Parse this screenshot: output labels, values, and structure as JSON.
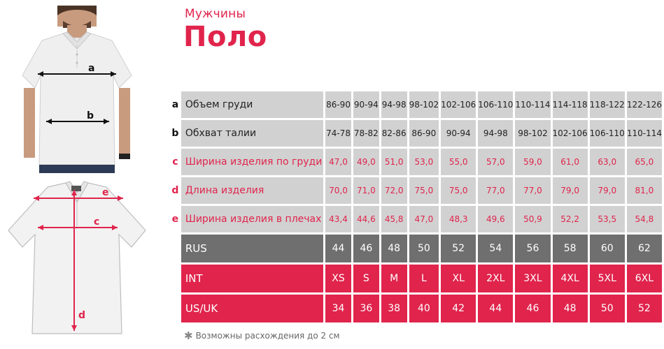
{
  "heading": {
    "subtitle": "Мужчины",
    "title": "Поло"
  },
  "figure_labels": {
    "model": [
      "a",
      "b"
    ],
    "flat": [
      "e",
      "c",
      "d"
    ]
  },
  "rows": [
    {
      "key": "a",
      "label": "Объем груди",
      "values": [
        "86-90",
        "90-94",
        "94-98",
        "98-102",
        "102-106",
        "106-110",
        "110-114",
        "114-118",
        "118-122",
        "122-126"
      ]
    },
    {
      "key": "b",
      "label": "Обхват талии",
      "values": [
        "74-78",
        "78-82",
        "82-86",
        "86-90",
        "90-94",
        "94-98",
        "98-102",
        "102-106",
        "106-110",
        "110-114"
      ]
    },
    {
      "key": "c",
      "label": "Ширина изделия по груди",
      "values": [
        "47,0",
        "49,0",
        "51,0",
        "53,0",
        "55,0",
        "57,0",
        "59,0",
        "61,0",
        "63,0",
        "65,0"
      ]
    },
    {
      "key": "d",
      "label": "Длина изделия",
      "values": [
        "70,0",
        "71,0",
        "72,0",
        "75,0",
        "75,0",
        "77,0",
        "77,0",
        "79,0",
        "79,0",
        "81,0"
      ]
    },
    {
      "key": "e",
      "label": "Ширина изделия в плечах",
      "values": [
        "43,4",
        "44,6",
        "45,8",
        "47,0",
        "48,3",
        "49,6",
        "50,9",
        "52,2",
        "53,5",
        "54,8"
      ]
    },
    {
      "key": "",
      "label": "RUS",
      "values": [
        "44",
        "46",
        "48",
        "50",
        "52",
        "54",
        "56",
        "58",
        "60",
        "62"
      ]
    },
    {
      "key": "",
      "label": "INT",
      "values": [
        "XS",
        "S",
        "M",
        "L",
        "XL",
        "2XL",
        "3XL",
        "4XL",
        "5XL",
        "6XL"
      ]
    },
    {
      "key": "",
      "label": "US/UK",
      "values": [
        "34",
        "36",
        "38",
        "40",
        "42",
        "44",
        "46",
        "48",
        "50",
        "52"
      ]
    }
  ],
  "footnote": "Возможны расхождения до 2 см",
  "colors": {
    "accent": "#e0244c",
    "grey_cell": "#d1d1d1",
    "dark_cell": "#6f6f6f"
  }
}
